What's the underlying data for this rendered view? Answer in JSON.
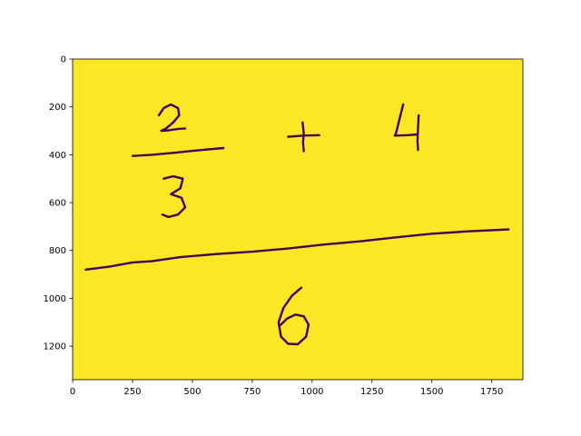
{
  "chart_data": {
    "type": "heatmap",
    "title": "",
    "xlabel": "",
    "ylabel": "",
    "xlim": [
      0,
      1880
    ],
    "ylim": [
      1340,
      0
    ],
    "y_axis_inverted": true,
    "x_ticks": [
      "0",
      "250",
      "500",
      "750",
      "1000",
      "1250",
      "1500",
      "1750"
    ],
    "y_ticks": [
      "0",
      "200",
      "400",
      "600",
      "800",
      "1000",
      "1200"
    ],
    "grid": false,
    "colormap": "viridis",
    "colors": {
      "background": "#fde725",
      "ink": "#440154"
    },
    "handwritten_content": "2/3 + 4 = 6 (handwritten: a fraction 2 over 3, a plus sign, the number 4, a long fraction bar, and 6 underneath)"
  }
}
